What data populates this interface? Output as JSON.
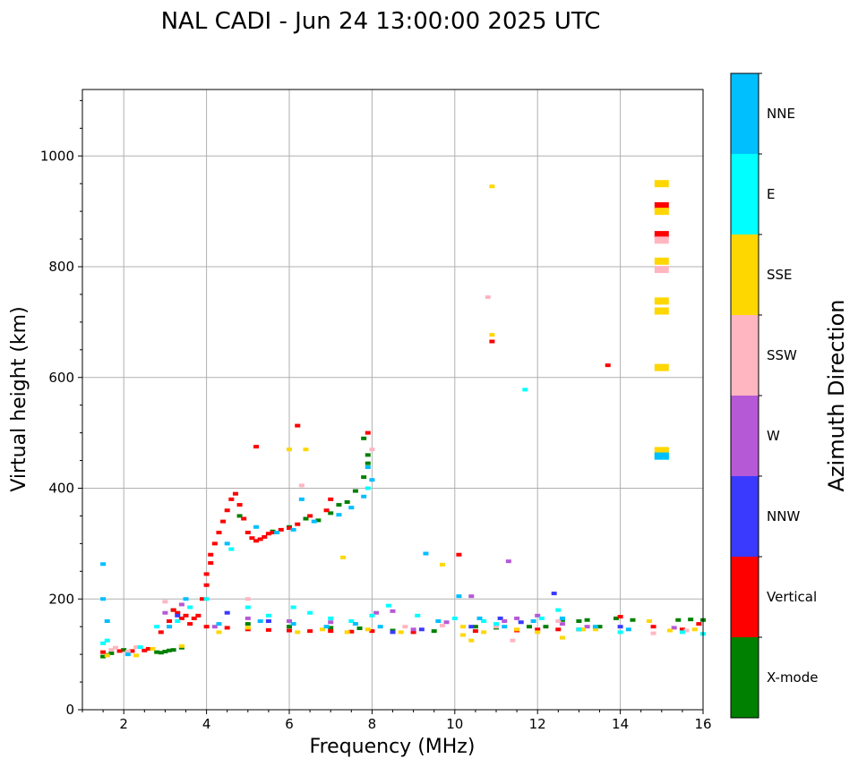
{
  "chart_data": {
    "type": "scatter",
    "title": "NAL CADI - Jun 24 13:00:00 2025 UTC",
    "xlabel": "Frequency (MHz)",
    "ylabel": "Virtual height (km)",
    "xlim": [
      1,
      16
    ],
    "ylim": [
      0,
      1120
    ],
    "xticks": [
      2,
      4,
      6,
      8,
      10,
      12,
      14,
      16
    ],
    "yticks": [
      0,
      200,
      400,
      600,
      800,
      1000
    ],
    "grid": true,
    "colorbar": {
      "label": "Azimuth Direction",
      "position": "right",
      "categories": [
        {
          "name": "X-mode",
          "color": "#008000"
        },
        {
          "name": "Vertical",
          "color": "#ff0000"
        },
        {
          "name": "NNW",
          "color": "#3a3aff"
        },
        {
          "name": "W",
          "color": "#b659d6"
        },
        {
          "name": "SSW",
          "color": "#ffb6c1"
        },
        {
          "name": "SSE",
          "color": "#ffd700"
        },
        {
          "name": "E",
          "color": "#00ffff"
        },
        {
          "name": "NNE",
          "color": "#00bfff"
        }
      ]
    },
    "series": [
      {
        "name": "X-mode",
        "points": [
          [
            1.5,
            96
          ],
          [
            1.6,
            99
          ],
          [
            1.7,
            102
          ],
          [
            2.0,
            108
          ],
          [
            2.8,
            104
          ],
          [
            2.9,
            103
          ],
          [
            3.0,
            105
          ],
          [
            3.1,
            107
          ],
          [
            3.2,
            108
          ],
          [
            3.4,
            112
          ],
          [
            4.8,
            350
          ],
          [
            5.6,
            322
          ],
          [
            6.0,
            330
          ],
          [
            6.4,
            345
          ],
          [
            6.7,
            342
          ],
          [
            7.0,
            355
          ],
          [
            7.2,
            370
          ],
          [
            7.4,
            375
          ],
          [
            7.6,
            395
          ],
          [
            7.8,
            420
          ],
          [
            7.9,
            445
          ],
          [
            7.9,
            460
          ],
          [
            7.8,
            490
          ],
          [
            3.2,
            180
          ],
          [
            5.0,
            155
          ],
          [
            6.0,
            150
          ],
          [
            7.0,
            148
          ],
          [
            7.7,
            147
          ],
          [
            8.5,
            143
          ],
          [
            9.5,
            142
          ],
          [
            10.5,
            150
          ],
          [
            11.0,
            148
          ],
          [
            11.8,
            150
          ],
          [
            12.2,
            150
          ],
          [
            12.6,
            162
          ],
          [
            13.0,
            160
          ],
          [
            13.2,
            162
          ],
          [
            13.5,
            150
          ],
          [
            13.9,
            165
          ],
          [
            14.3,
            162
          ],
          [
            15.4,
            162
          ],
          [
            15.7,
            163
          ],
          [
            16.0,
            162
          ]
        ]
      },
      {
        "name": "Vertical",
        "points": [
          [
            1.5,
            104
          ],
          [
            1.9,
            106
          ],
          [
            2.2,
            106
          ],
          [
            2.5,
            107
          ],
          [
            2.6,
            110
          ],
          [
            2.9,
            140
          ],
          [
            3.1,
            160
          ],
          [
            3.2,
            180
          ],
          [
            3.3,
            175
          ],
          [
            3.4,
            165
          ],
          [
            3.5,
            170
          ],
          [
            3.6,
            155
          ],
          [
            3.7,
            165
          ],
          [
            3.8,
            170
          ],
          [
            3.9,
            200
          ],
          [
            4.0,
            225
          ],
          [
            4.0,
            245
          ],
          [
            4.1,
            265
          ],
          [
            4.1,
            280
          ],
          [
            4.2,
            300
          ],
          [
            4.3,
            320
          ],
          [
            4.4,
            340
          ],
          [
            4.5,
            360
          ],
          [
            4.6,
            380
          ],
          [
            4.7,
            390
          ],
          [
            4.8,
            370
          ],
          [
            4.9,
            345
          ],
          [
            5.0,
            320
          ],
          [
            5.1,
            310
          ],
          [
            5.2,
            305
          ],
          [
            5.3,
            308
          ],
          [
            5.4,
            312
          ],
          [
            5.5,
            318
          ],
          [
            5.6,
            320
          ],
          [
            5.8,
            325
          ],
          [
            6.0,
            328
          ],
          [
            6.2,
            335
          ],
          [
            6.5,
            350
          ],
          [
            6.9,
            360
          ],
          [
            5.2,
            475
          ],
          [
            6.2,
            513
          ],
          [
            7.0,
            380
          ],
          [
            7.9,
            500
          ],
          [
            4.0,
            150
          ],
          [
            4.5,
            148
          ],
          [
            5.0,
            145
          ],
          [
            5.5,
            144
          ],
          [
            6.0,
            143
          ],
          [
            6.5,
            142
          ],
          [
            7.0,
            142
          ],
          [
            7.5,
            141
          ],
          [
            8.0,
            142
          ],
          [
            9.0,
            140
          ],
          [
            10.1,
            280
          ],
          [
            10.5,
            142
          ],
          [
            10.9,
            665
          ],
          [
            11.5,
            143
          ],
          [
            12.0,
            145
          ],
          [
            12.5,
            145
          ],
          [
            13.0,
            145
          ],
          [
            13.7,
            622
          ],
          [
            14.0,
            168
          ],
          [
            14.8,
            150
          ],
          [
            15.0,
            858
          ],
          [
            15.0,
            910
          ],
          [
            15.5,
            145
          ],
          [
            15.9,
            155
          ]
        ]
      },
      {
        "name": "NNW",
        "points": [
          [
            3.3,
            170
          ],
          [
            4.5,
            175
          ],
          [
            5.5,
            160
          ],
          [
            8.5,
            140
          ],
          [
            9.2,
            145
          ],
          [
            10.4,
            150
          ],
          [
            11.1,
            165
          ],
          [
            11.6,
            158
          ],
          [
            12.4,
            210
          ],
          [
            14.0,
            150
          ]
        ]
      },
      {
        "name": "W",
        "points": [
          [
            3.0,
            175
          ],
          [
            3.4,
            190
          ],
          [
            4.2,
            150
          ],
          [
            5.0,
            165
          ],
          [
            6.0,
            160
          ],
          [
            7.0,
            158
          ],
          [
            8.1,
            175
          ],
          [
            8.5,
            178
          ],
          [
            9.0,
            145
          ],
          [
            9.8,
            158
          ],
          [
            10.4,
            205
          ],
          [
            11.2,
            160
          ],
          [
            11.3,
            268
          ],
          [
            11.5,
            165
          ],
          [
            12.0,
            170
          ],
          [
            12.6,
            155
          ],
          [
            13.2,
            150
          ],
          [
            15.3,
            148
          ]
        ]
      },
      {
        "name": "SSW",
        "points": [
          [
            1.7,
            108
          ],
          [
            1.8,
            112
          ],
          [
            2.1,
            105
          ],
          [
            2.3,
            113
          ],
          [
            3.0,
            195
          ],
          [
            5.0,
            200
          ],
          [
            6.3,
            405
          ],
          [
            8.0,
            470
          ],
          [
            8.8,
            150
          ],
          [
            9.7,
            152
          ],
          [
            10.8,
            745
          ],
          [
            11.0,
            150
          ],
          [
            11.4,
            125
          ],
          [
            12.5,
            160
          ],
          [
            14.8,
            138
          ],
          [
            15.0,
            848
          ],
          [
            15.0,
            795
          ],
          [
            15.0,
            467
          ],
          [
            15.6,
            143
          ]
        ]
      },
      {
        "name": "SSE",
        "points": [
          [
            1.6,
            98
          ],
          [
            2.3,
            98
          ],
          [
            2.7,
            110
          ],
          [
            3.4,
            115
          ],
          [
            4.3,
            140
          ],
          [
            5.0,
            148
          ],
          [
            6.0,
            470
          ],
          [
            6.4,
            470
          ],
          [
            6.2,
            140
          ],
          [
            6.8,
            145
          ],
          [
            7.3,
            275
          ],
          [
            7.4,
            140
          ],
          [
            7.9,
            145
          ],
          [
            8.7,
            140
          ],
          [
            9.7,
            262
          ],
          [
            10.2,
            135
          ],
          [
            10.2,
            150
          ],
          [
            10.4,
            125
          ],
          [
            10.7,
            140
          ],
          [
            10.9,
            945
          ],
          [
            10.9,
            677
          ],
          [
            11.5,
            145
          ],
          [
            12.0,
            140
          ],
          [
            12.6,
            130
          ],
          [
            13.1,
            145
          ],
          [
            13.4,
            145
          ],
          [
            14.7,
            160
          ],
          [
            15.0,
            950
          ],
          [
            15.0,
            900
          ],
          [
            15.0,
            810
          ],
          [
            15.0,
            720
          ],
          [
            15.0,
            738
          ],
          [
            15.0,
            618
          ],
          [
            15.0,
            468
          ],
          [
            15.2,
            143
          ],
          [
            15.8,
            145
          ]
        ]
      },
      {
        "name": "E",
        "points": [
          [
            1.5,
            120
          ],
          [
            1.6,
            125
          ],
          [
            2.4,
            113
          ],
          [
            2.8,
            150
          ],
          [
            3.3,
            160
          ],
          [
            3.6,
            185
          ],
          [
            4.0,
            200
          ],
          [
            4.6,
            290
          ],
          [
            5.0,
            185
          ],
          [
            5.5,
            170
          ],
          [
            6.1,
            185
          ],
          [
            6.5,
            175
          ],
          [
            7.0,
            165
          ],
          [
            7.5,
            160
          ],
          [
            7.9,
            400
          ],
          [
            8.0,
            170
          ],
          [
            8.4,
            188
          ],
          [
            9.1,
            170
          ],
          [
            10.0,
            165
          ],
          [
            10.7,
            160
          ],
          [
            11.0,
            155
          ],
          [
            11.7,
            578
          ],
          [
            12.1,
            165
          ],
          [
            12.5,
            180
          ],
          [
            13.0,
            145
          ],
          [
            14.0,
            140
          ],
          [
            15.0,
            458
          ],
          [
            15.5,
            140
          ],
          [
            16.0,
            137
          ]
        ]
      },
      {
        "name": "NNE",
        "points": [
          [
            1.5,
            263
          ],
          [
            1.5,
            200
          ],
          [
            1.6,
            160
          ],
          [
            2.1,
            100
          ],
          [
            3.1,
            150
          ],
          [
            3.5,
            200
          ],
          [
            4.5,
            300
          ],
          [
            5.2,
            330
          ],
          [
            5.7,
            320
          ],
          [
            6.1,
            325
          ],
          [
            6.3,
            380
          ],
          [
            6.6,
            340
          ],
          [
            7.2,
            352
          ],
          [
            7.5,
            365
          ],
          [
            7.8,
            385
          ],
          [
            8.0,
            415
          ],
          [
            7.9,
            438
          ],
          [
            4.3,
            155
          ],
          [
            5.3,
            160
          ],
          [
            6.1,
            155
          ],
          [
            6.9,
            150
          ],
          [
            7.6,
            155
          ],
          [
            8.2,
            150
          ],
          [
            9.3,
            282
          ],
          [
            9.6,
            160
          ],
          [
            10.1,
            205
          ],
          [
            10.6,
            165
          ],
          [
            11.2,
            150
          ],
          [
            11.9,
            160
          ],
          [
            12.6,
            165
          ],
          [
            13.4,
            150
          ],
          [
            14.2,
            145
          ],
          [
            15.0,
            458
          ]
        ]
      }
    ]
  }
}
